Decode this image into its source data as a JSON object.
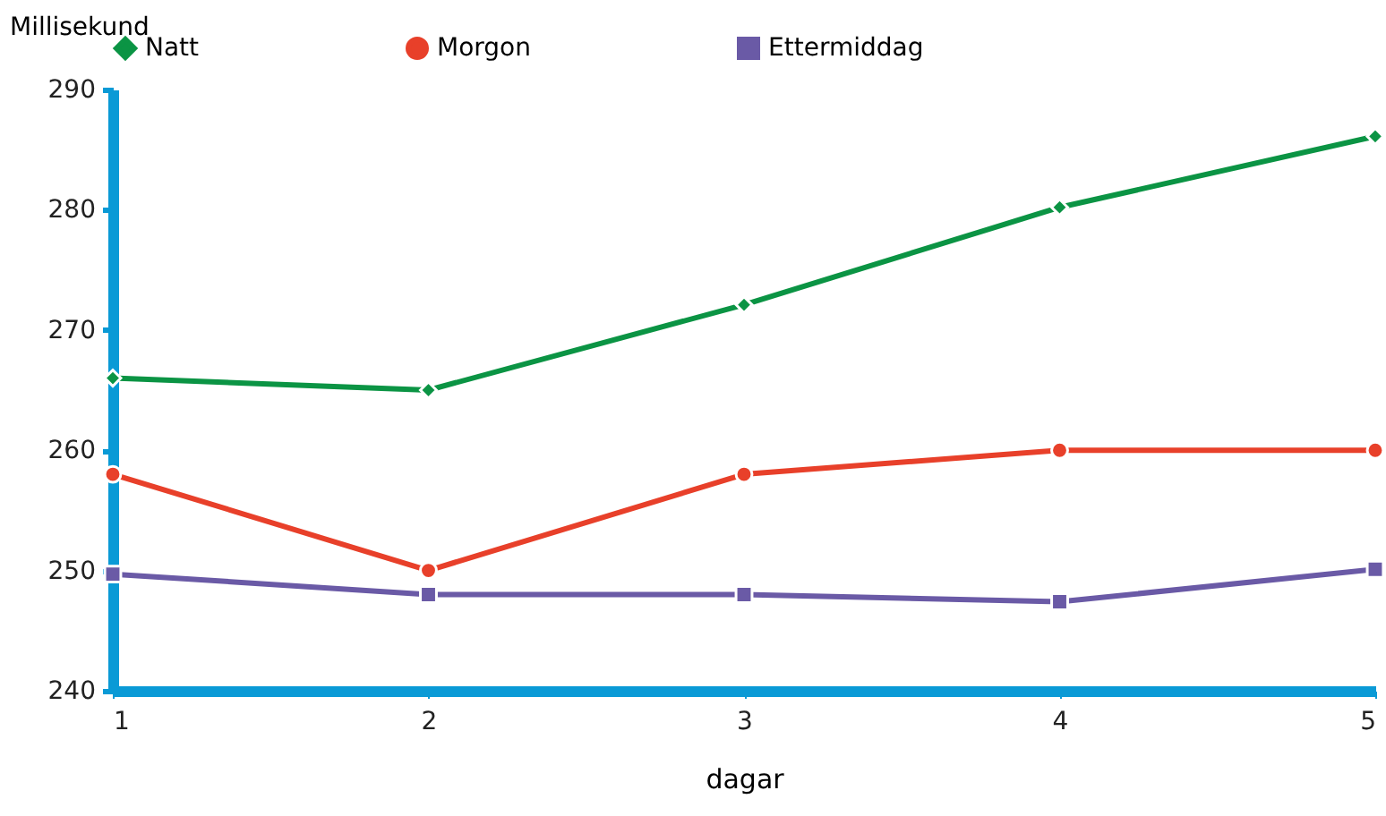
{
  "chart_data": {
    "type": "line",
    "xlabel": "dagar",
    "ylabel": "Millisekund",
    "x": [
      1,
      2,
      3,
      4,
      5
    ],
    "xlim": [
      1,
      5
    ],
    "xticks": [
      1,
      2,
      3,
      4,
      5
    ],
    "ylim": [
      240,
      290
    ],
    "yticks": [
      240,
      250,
      260,
      270,
      280,
      290
    ],
    "grid": false,
    "legend": "top",
    "line_style": "solid",
    "series": [
      {
        "name": "Natt",
        "color": "#0b9444",
        "marker": "diamond",
        "values": [
          266,
          265,
          272.1,
          280.2,
          286.1
        ]
      },
      {
        "name": "Morgon",
        "color": "#e8402a",
        "marker": "circle",
        "values": [
          258,
          250,
          258,
          260,
          260
        ]
      },
      {
        "name": "Ettermiddag",
        "color": "#6a5aa6",
        "marker": "square",
        "values": [
          249.7,
          248,
          248,
          247.4,
          250.1
        ]
      }
    ]
  }
}
